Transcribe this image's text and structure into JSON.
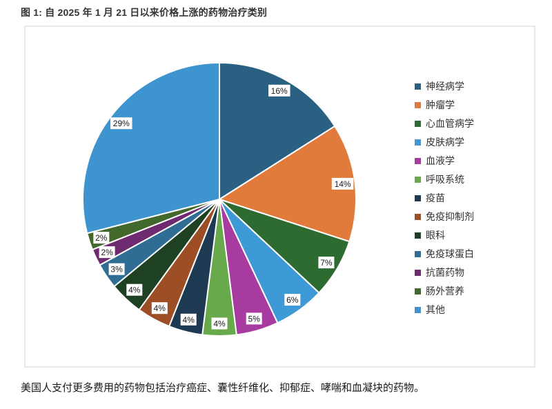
{
  "title": "图 1: 自 2025 年 1 月 21 日以来价格上涨的药物治疗类别",
  "caption": "美国人支付更多费用的药物包括治疗癌症、囊性纤维化、抑郁症、哮喘和血凝块的药物。",
  "chart_data": {
    "type": "pie",
    "title": "自 2025 年 1 月 21 日以来价格上涨的药物治疗类别",
    "start_angle_deg": 0,
    "direction": "clockwise",
    "legend_position": "right",
    "stroke_color": "#ffffff",
    "label_box_color": "#ffffff",
    "slices": [
      {
        "label": "神经病学",
        "value": 16,
        "data_label": "16%",
        "color": "#2a6183"
      },
      {
        "label": "肿瘤学",
        "value": 14,
        "data_label": "14%",
        "color": "#e07b3c"
      },
      {
        "label": "心血管病学",
        "value": 7,
        "data_label": "7%",
        "color": "#2e6b31"
      },
      {
        "label": "皮肤病学",
        "value": 6,
        "data_label": "6%",
        "color": "#3e9ad6"
      },
      {
        "label": "血液学",
        "value": 5,
        "data_label": "5%",
        "color": "#a83ba0"
      },
      {
        "label": "呼吸系统",
        "value": 4,
        "data_label": "4%",
        "color": "#68aa4b"
      },
      {
        "label": "疫苗",
        "value": 4,
        "data_label": "4%",
        "color": "#1d3a52"
      },
      {
        "label": "免疫抑制剂",
        "value": 4,
        "data_label": "4%",
        "color": "#9e4e24"
      },
      {
        "label": "眼科",
        "value": 4,
        "data_label": "4%",
        "color": "#1e4023"
      },
      {
        "label": "免疫球蛋白",
        "value": 3,
        "data_label": "3%",
        "color": "#2f6d94"
      },
      {
        "label": "抗菌药物",
        "value": 2,
        "data_label": "2%",
        "color": "#6e2b70"
      },
      {
        "label": "肠外营养",
        "value": 2,
        "data_label": "2%",
        "color": "#42682c"
      },
      {
        "label": "其他",
        "value": 29,
        "data_label": "29%",
        "color": "#3d94cf"
      }
    ]
  }
}
